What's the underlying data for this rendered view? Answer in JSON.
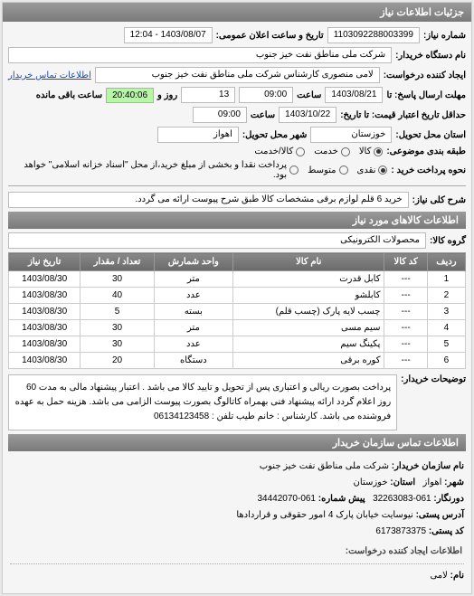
{
  "panel_title": "جزئیات اطلاعات نیاز",
  "fields": {
    "req_no_label": "شماره نیاز:",
    "req_no": "1103092288003399",
    "date_label": "تاریخ و ساعت اعلان عمومی:",
    "date_value": "1403/08/07 - 12:04",
    "buyer_label": "نام دستگاه خریدار:",
    "buyer": "شرکت ملی مناطق نفت خیز جنوب",
    "requester_label": "ایجاد کننده درخواست:",
    "requester": "لامی منصوری کارشناس شرکت ملی مناطق نفت خیز جنوب",
    "contact_link": "اطلاعات تماس خریدار",
    "deadline_send_label": "مهلت ارسال پاسخ: تا",
    "deadline_send_date": "1403/08/21",
    "time_label": "ساعت",
    "deadline_send_time": "09:00",
    "remain_days": "13",
    "remain_days_label": "روز و",
    "remain_time": "20:40:06",
    "remain_suffix": "ساعت باقی مانده",
    "validity_label": "حداقل تاریخ اعتبار قیمت: تا تاریخ:",
    "validity_date": "1403/10/22",
    "validity_time": "09:00",
    "delivery_state_label": "استان محل تحویل:",
    "delivery_state": "خوزستان",
    "delivery_city_label": "شهر محل تحویل:",
    "delivery_city": "اهواز",
    "bundle_label": "طبقه بندی موضوعی:",
    "radio_goods": "کالا",
    "radio_service": "خدمت",
    "radio_both": "کالا/خدمت",
    "payment_label": "نحوه پرداخت خرید :",
    "radio_cash": "نقدی",
    "radio_medium": "متوسط",
    "radio_after": "پرداخت نقدا و بخشی از مبلغ خرید،از محل \"اسناد خزانه اسلامی\" خواهد بود.",
    "general_title_label": "شرح کلی نیاز:",
    "general_title": "خرید 6 قلم لوازم برقی مشخصات کالا طبق شرح پیوست ارائه می گردد.",
    "goods_section": "اطلاعات کالاهای مورد نیاز",
    "goods_group_label": "گروه کالا:",
    "goods_group": "محصولات الکترونیکی"
  },
  "table": {
    "headers": [
      "ردیف",
      "کد کالا",
      "نام کالا",
      "واحد شمارش",
      "تعداد / مقدار",
      "تاریخ نیاز"
    ],
    "rows": [
      [
        "1",
        "---",
        "کابل قدرت",
        "متر",
        "30",
        "1403/08/30"
      ],
      [
        "2",
        "---",
        "کابلشو",
        "عدد",
        "40",
        "1403/08/30"
      ],
      [
        "3",
        "---",
        "چسب لایه پارک (چسب قلم)",
        "بسته",
        "5",
        "1403/08/30"
      ],
      [
        "4",
        "---",
        "سیم مسی",
        "متر",
        "30",
        "1403/08/30"
      ],
      [
        "5",
        "---",
        "پکینگ سیم",
        "عدد",
        "30",
        "1403/08/30"
      ],
      [
        "6",
        "---",
        "کوره برقی",
        "دستگاه",
        "20",
        "1403/08/30"
      ]
    ]
  },
  "buyer_note_label": "توضیحات خریدار:",
  "buyer_note": "پرداخت بصورت ریالی و اعتباری پس از تحویل و تایید کالا می باشد . اعتبار پیشنهاد مالی به مدت 60 روز اعلام گردد ارائه پیشنهاد فنی بهمراه کاتالوگ بصورت پیوست الزامی می باشد. هزینه حمل به عهده فروشنده می باشد. کارشناس : خانم طیب تلفن : 06134123458",
  "contact_section": "اطلاعات تماس سازمان خریدار",
  "contact": {
    "org_label": "نام سازمان خریدار:",
    "org": "شرکت ملی مناطق نفت خیز جنوب",
    "city_label": "شهر:",
    "city": "اهواز",
    "province_label": "استان:",
    "province": "خوزستان",
    "fax_label": "دورنگار:",
    "fax": "061-32263083",
    "pre_label": "پیش شماره:",
    "pre": "061-34442070",
    "address_label": "آدرس پستی:",
    "address": "نیوسایت خیابان پارک 4 امور حقوقی و قراردادها",
    "postcode_label": "کد پستی:",
    "postcode": "6173873375",
    "creator_section": "اطلاعات ایجاد کننده درخواست:",
    "name_label": "نام:",
    "name": "لامی"
  },
  "colors": {
    "header_bg": "#808080",
    "green": "#b8f5a8",
    "border": "#bbbbbb"
  }
}
